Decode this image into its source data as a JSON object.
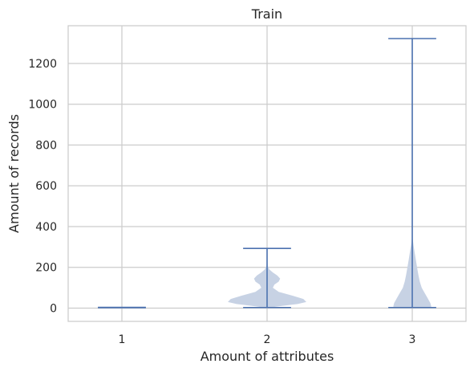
{
  "chart_data": {
    "type": "violin",
    "title": "Train",
    "xlabel": "Amount of attributes",
    "ylabel": "Amount of records",
    "categories": [
      "1",
      "2",
      "3"
    ],
    "x": [
      1,
      2,
      3
    ],
    "xlim": [
      0.63,
      3.37
    ],
    "ylim": [
      -65,
      1385
    ],
    "yticks": [
      0,
      200,
      400,
      600,
      800,
      1000,
      1200
    ],
    "grid": true,
    "violins": [
      {
        "x": 1,
        "min": 2,
        "max": 4,
        "density": [
          [
            2,
            0.3
          ],
          [
            3,
            0.32
          ],
          [
            4,
            0.3
          ]
        ]
      },
      {
        "x": 2,
        "min": 3,
        "max": 293,
        "density": [
          [
            3,
            0.02
          ],
          [
            10,
            0.09
          ],
          [
            20,
            0.21
          ],
          [
            30,
            0.27
          ],
          [
            45,
            0.25
          ],
          [
            60,
            0.18
          ],
          [
            80,
            0.08
          ],
          [
            100,
            0.04
          ],
          [
            115,
            0.05
          ],
          [
            130,
            0.08
          ],
          [
            145,
            0.09
          ],
          [
            160,
            0.07
          ],
          [
            175,
            0.04
          ],
          [
            190,
            0.015
          ],
          [
            210,
            0.004
          ],
          [
            293,
            0.0
          ]
        ]
      },
      {
        "x": 3,
        "min": 3,
        "max": 1322,
        "density": [
          [
            3,
            0.13
          ],
          [
            10,
            0.13
          ],
          [
            25,
            0.125
          ],
          [
            50,
            0.105
          ],
          [
            75,
            0.085
          ],
          [
            100,
            0.065
          ],
          [
            130,
            0.052
          ],
          [
            160,
            0.043
          ],
          [
            200,
            0.033
          ],
          [
            240,
            0.024
          ],
          [
            280,
            0.015
          ],
          [
            310,
            0.008
          ],
          [
            340,
            0.003
          ],
          [
            400,
            0.001
          ],
          [
            1322,
            0.0
          ]
        ]
      }
    ],
    "colors": {
      "fill": "#c7d2e4",
      "line": "#4c72b0",
      "grid": "#cccccc",
      "frame": "#cccccc"
    }
  }
}
